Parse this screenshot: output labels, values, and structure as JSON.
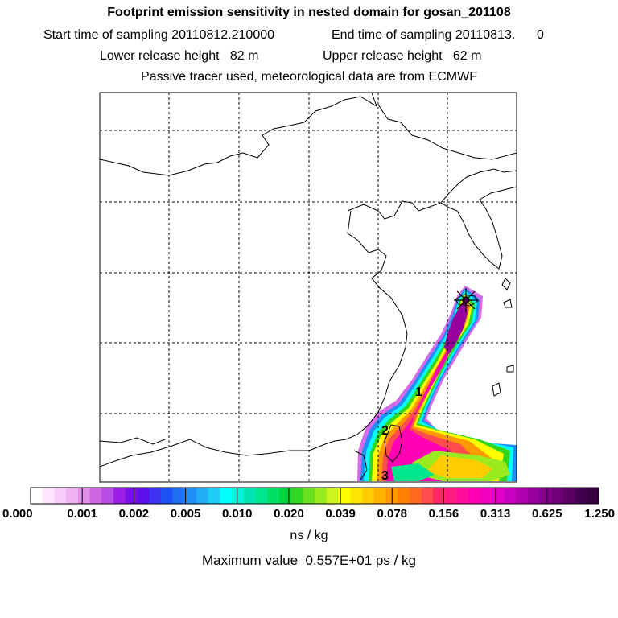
{
  "header": {
    "title": "Footprint emission sensitivity in nested domain for gosan_201108",
    "start_label": "Start time of sampling 20110812.210000",
    "end_label": "End time of sampling 20110813.      0",
    "lower_label": "Lower release height   82 m",
    "upper_label": "Upper release height   62 m",
    "tracer_label": "Passive tracer used, meteorological data are from ECMWF"
  },
  "chart_data": {
    "type": "heatmap",
    "title": "Footprint emission sensitivity in nested domain for gosan_201108",
    "colorbar": {
      "tick_labels": [
        "0.000",
        "0.001",
        "0.002",
        "0.005",
        "0.010",
        "0.020",
        "0.039",
        "0.078",
        "0.156",
        "0.313",
        "0.625",
        "1.250"
      ],
      "colors": [
        "#ffffff",
        "#fde6fd",
        "#f8ccf8",
        "#f2b3f4",
        "#df8fe8",
        "#cc66e0",
        "#b84ce6",
        "#9c1fe6",
        "#7a12e6",
        "#5c0fe8",
        "#3d33f0",
        "#1f52f5",
        "#1f70f5",
        "#1f8ff5",
        "#1fadf5",
        "#1fccf5",
        "#00ffff",
        "#00f2d9",
        "#00e6b3",
        "#00e68c",
        "#00e066",
        "#00d640",
        "#33d61f",
        "#66e01f",
        "#99eb1f",
        "#ccf51f",
        "#ffff00",
        "#ffe600",
        "#ffcc00",
        "#ffb300",
        "#ff9900",
        "#ff7f00",
        "#ff6a1f",
        "#ff4d4d",
        "#ff2a66",
        "#ff1a80",
        "#ff0d99",
        "#ff00b3",
        "#f000bf",
        "#e000c6",
        "#c800c0",
        "#b000b0",
        "#98009e",
        "#84008c",
        "#700078",
        "#5a0062",
        "#440050",
        "#380040"
      ],
      "unit_label": "ns / kg"
    },
    "max_value_label": "Maximum value  0.557E+01 ps / kg",
    "contour_labels": [
      "1",
      "2",
      "3"
    ],
    "release_marker": "Gosan",
    "grid": true
  }
}
